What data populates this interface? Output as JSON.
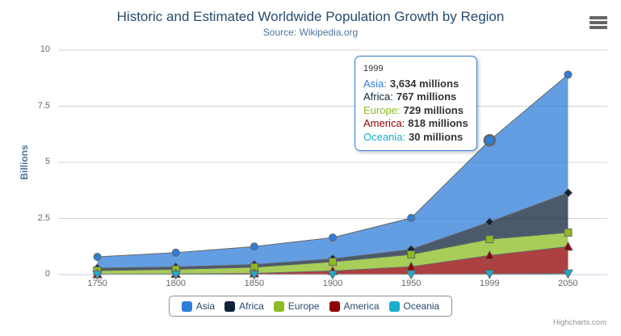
{
  "credits": "Highcharts.com",
  "tooltip": {
    "header": "1999",
    "rows": [
      {
        "label": "Asia:",
        "value": "3,634 millions",
        "color": "#2f7ed8"
      },
      {
        "label": "Africa:",
        "value": "767 millions",
        "color": "#0d233a"
      },
      {
        "label": "Europe:",
        "value": "729 millions",
        "color": "#8bbc21"
      },
      {
        "label": "America:",
        "value": "818 millions",
        "color": "#910000"
      },
      {
        "label": "Oceania:",
        "value": "30 millions",
        "color": "#1aadce"
      }
    ]
  },
  "chart_data": {
    "type": "area",
    "stacking": "normal",
    "title": "Historic and Estimated Worldwide Population Growth by Region",
    "subtitle": "Source: Wikipedia.org",
    "categories": [
      "1750",
      "1800",
      "1850",
      "1900",
      "1950",
      "1999",
      "2050"
    ],
    "unit": "millions",
    "ylabel": "Billions",
    "ylim": [
      0,
      10
    ],
    "yticks": [
      0,
      2.5,
      5,
      7.5,
      10
    ],
    "grid": true,
    "legend_position": "bottom",
    "line_color": "#666666",
    "fill_opacity": 0.75,
    "series": [
      {
        "name": "Asia",
        "color": "#2f7ed8",
        "marker": "circle",
        "values": [
          502,
          635,
          809,
          947,
          1402,
          3634,
          5268
        ]
      },
      {
        "name": "Africa",
        "color": "#0d233a",
        "marker": "diamond",
        "values": [
          106,
          107,
          111,
          133,
          221,
          767,
          1766
        ]
      },
      {
        "name": "Europe",
        "color": "#8bbc21",
        "marker": "square",
        "values": [
          163,
          203,
          276,
          408,
          547,
          729,
          628
        ]
      },
      {
        "name": "America",
        "color": "#910000",
        "marker": "triangle",
        "values": [
          18,
          31,
          54,
          156,
          339,
          818,
          1201
        ]
      },
      {
        "name": "Oceania",
        "color": "#1aadce",
        "marker": "triangle-down",
        "values": [
          2,
          2,
          2,
          6,
          13,
          30,
          46
        ]
      }
    ],
    "hover": {
      "series": "Asia",
      "category": "1999",
      "category_index": 5
    }
  }
}
